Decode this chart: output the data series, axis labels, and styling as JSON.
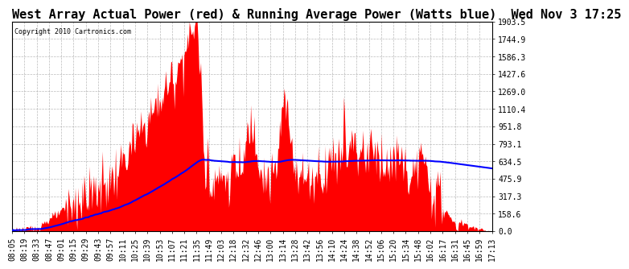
{
  "title": "West Array Actual Power (red) & Running Average Power (Watts blue)  Wed Nov 3 17:25",
  "copyright": "Copyright 2010 Cartronics.com",
  "ylabel_ticks": [
    0.0,
    158.6,
    317.3,
    475.9,
    634.5,
    793.1,
    951.8,
    1110.4,
    1269.0,
    1427.6,
    1586.3,
    1744.9,
    1903.5
  ],
  "ymax": 1903.5,
  "ymin": 0.0,
  "x_labels": [
    "08:05",
    "08:19",
    "08:33",
    "08:47",
    "09:01",
    "09:15",
    "09:29",
    "09:43",
    "09:57",
    "10:11",
    "10:25",
    "10:39",
    "10:53",
    "11:07",
    "11:21",
    "11:35",
    "11:49",
    "12:03",
    "12:18",
    "12:32",
    "12:46",
    "13:00",
    "13:14",
    "13:28",
    "13:42",
    "13:56",
    "14:10",
    "14:24",
    "14:38",
    "14:52",
    "15:06",
    "15:20",
    "15:34",
    "15:48",
    "16:02",
    "16:17",
    "16:31",
    "16:45",
    "16:59",
    "17:13"
  ],
  "background_color": "#ffffff",
  "plot_bg_color": "#ffffff",
  "grid_color": "#aaaaaa",
  "red_color": "#ff0000",
  "blue_color": "#0000ff",
  "title_fontsize": 11,
  "tick_fontsize": 7,
  "border_color": "#000000"
}
